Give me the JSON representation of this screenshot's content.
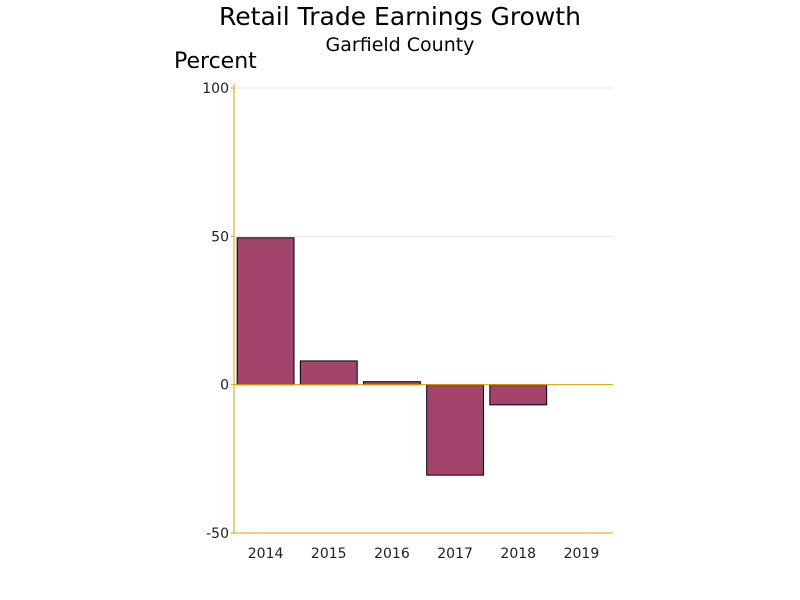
{
  "chart_data": {
    "type": "bar",
    "title": "Retail Trade Earnings Growth",
    "subtitle": "Garfield County",
    "ylabel": "Percent",
    "xlabel": "",
    "categories": [
      "2014",
      "2015",
      "2016",
      "2017",
      "2018",
      "2019"
    ],
    "series": [
      {
        "values": [
          49.5,
          8.0,
          1.0,
          -30.5,
          -6.8,
          0
        ]
      }
    ],
    "ylim": [
      -50,
      100
    ],
    "yticks": [
      100,
      50,
      0,
      -50
    ],
    "grid": true,
    "legend": "none",
    "colors": {
      "bar": "#A1436A",
      "axis": "#E0A000",
      "grid": "#E6E6E6",
      "bar_outline": "#000000"
    }
  }
}
